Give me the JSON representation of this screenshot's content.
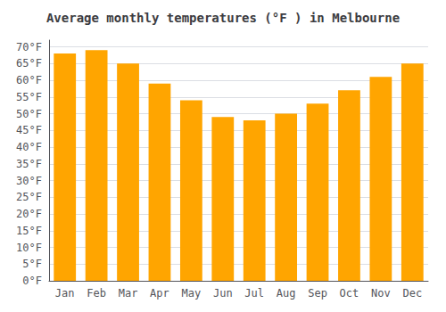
{
  "chart_data": {
    "type": "bar",
    "title": "Average monthly temperatures (°F ) in Melbourne",
    "categories": [
      "Jan",
      "Feb",
      "Mar",
      "Apr",
      "May",
      "Jun",
      "Jul",
      "Aug",
      "Sep",
      "Oct",
      "Nov",
      "Dec"
    ],
    "values": [
      68,
      69,
      65,
      59,
      54,
      49,
      48,
      50,
      53,
      57,
      61,
      65
    ],
    "color": "#FFA500",
    "ylim": [
      0,
      72
    ],
    "yticks": [
      {
        "value": 0,
        "label": "0°F"
      },
      {
        "value": 5,
        "label": "5°F"
      },
      {
        "value": 10,
        "label": "10°F"
      },
      {
        "value": 15,
        "label": "15°F"
      },
      {
        "value": 20,
        "label": "20°F"
      },
      {
        "value": 25,
        "label": "25°F"
      },
      {
        "value": 30,
        "label": "30°F"
      },
      {
        "value": 35,
        "label": "35°F"
      },
      {
        "value": 40,
        "label": "40°F"
      },
      {
        "value": 45,
        "label": "45°F"
      },
      {
        "value": 50,
        "label": "50°F"
      },
      {
        "value": 55,
        "label": "55°F"
      },
      {
        "value": 60,
        "label": "60°F"
      },
      {
        "value": 65,
        "label": "65°F"
      },
      {
        "value": 70,
        "label": "70°F"
      }
    ],
    "grid": true
  }
}
